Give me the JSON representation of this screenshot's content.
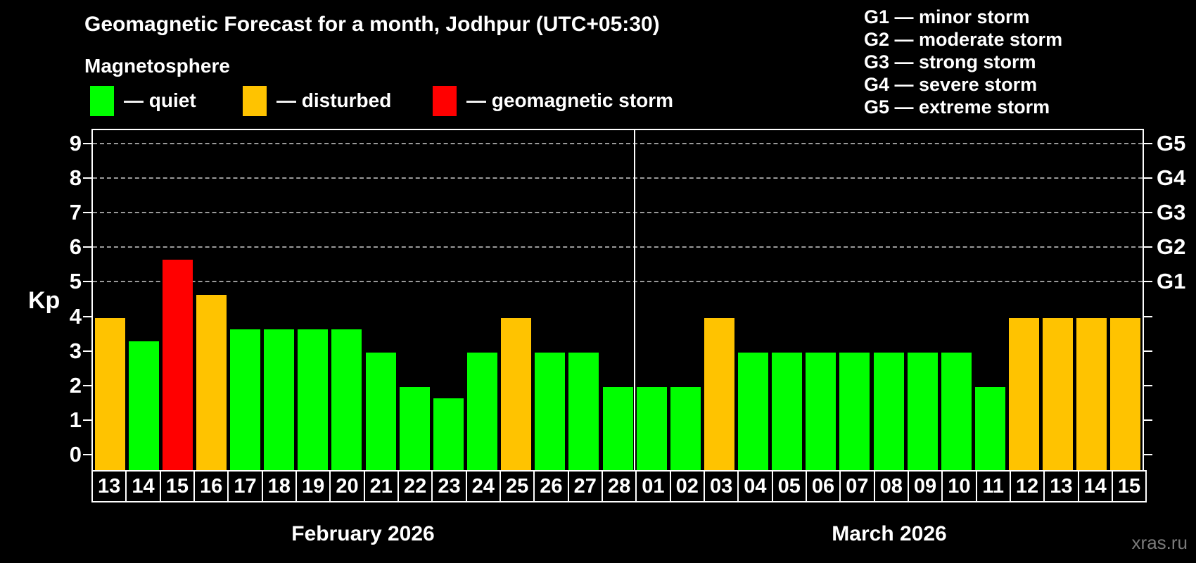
{
  "header": {
    "title": "Geomagnetic Forecast for a month, Jodhpur (UTC+05:30)",
    "subtitle": "Magnetosphere"
  },
  "legend": {
    "items": [
      {
        "name": "quiet",
        "label": "— quiet",
        "color": "#00ff00"
      },
      {
        "name": "disturbed",
        "label": "— disturbed",
        "color": "#ffc300"
      },
      {
        "name": "storm",
        "label": "— geomagnetic storm",
        "color": "#ff0000"
      }
    ]
  },
  "g_scale_legend": [
    "G1 — minor storm",
    "G2 — moderate storm",
    "G3 — strong storm",
    "G4 — severe storm",
    "G5 — extreme storm"
  ],
  "status_colors": {
    "quiet": "#00ff00",
    "disturbed": "#ffc300",
    "storm": "#ff0000"
  },
  "watermark": "xras.ru",
  "chart_data": {
    "type": "bar",
    "ylabel": "Kp",
    "ylim": [
      -0.4,
      9.38
    ],
    "y_ticks": [
      0,
      1,
      2,
      3,
      4,
      5,
      6,
      7,
      8,
      9
    ],
    "gridlines_at": [
      5,
      6,
      7,
      8,
      9
    ],
    "grid": "dashed horizontal at G-levels only",
    "legend_position": "top",
    "right_axis_labels": [
      {
        "value": 5,
        "label": "G1"
      },
      {
        "value": 6,
        "label": "G2"
      },
      {
        "value": 7,
        "label": "G3"
      },
      {
        "value": 8,
        "label": "G4"
      },
      {
        "value": 9,
        "label": "G5"
      }
    ],
    "months": [
      {
        "label": "February 2026",
        "days": [
          {
            "day": "13",
            "kp": 4.0,
            "status": "disturbed"
          },
          {
            "day": "14",
            "kp": 3.33,
            "status": "quiet"
          },
          {
            "day": "15",
            "kp": 5.67,
            "status": "storm"
          },
          {
            "day": "16",
            "kp": 4.67,
            "status": "disturbed"
          },
          {
            "day": "17",
            "kp": 3.67,
            "status": "quiet"
          },
          {
            "day": "18",
            "kp": 3.67,
            "status": "quiet"
          },
          {
            "day": "19",
            "kp": 3.67,
            "status": "quiet"
          },
          {
            "day": "20",
            "kp": 3.67,
            "status": "quiet"
          },
          {
            "day": "21",
            "kp": 3.0,
            "status": "quiet"
          },
          {
            "day": "22",
            "kp": 2.0,
            "status": "quiet"
          },
          {
            "day": "23",
            "kp": 1.67,
            "status": "quiet"
          },
          {
            "day": "24",
            "kp": 3.0,
            "status": "quiet"
          },
          {
            "day": "25",
            "kp": 4.0,
            "status": "disturbed"
          },
          {
            "day": "26",
            "kp": 3.0,
            "status": "quiet"
          },
          {
            "day": "27",
            "kp": 3.0,
            "status": "quiet"
          },
          {
            "day": "28",
            "kp": 2.0,
            "status": "quiet"
          }
        ]
      },
      {
        "label": "March 2026",
        "days": [
          {
            "day": "01",
            "kp": 2.0,
            "status": "quiet"
          },
          {
            "day": "02",
            "kp": 2.0,
            "status": "quiet"
          },
          {
            "day": "03",
            "kp": 4.0,
            "status": "disturbed"
          },
          {
            "day": "04",
            "kp": 3.0,
            "status": "quiet"
          },
          {
            "day": "05",
            "kp": 3.0,
            "status": "quiet"
          },
          {
            "day": "06",
            "kp": 3.0,
            "status": "quiet"
          },
          {
            "day": "07",
            "kp": 3.0,
            "status": "quiet"
          },
          {
            "day": "08",
            "kp": 3.0,
            "status": "quiet"
          },
          {
            "day": "09",
            "kp": 3.0,
            "status": "quiet"
          },
          {
            "day": "10",
            "kp": 3.0,
            "status": "quiet"
          },
          {
            "day": "11",
            "kp": 2.0,
            "status": "quiet"
          },
          {
            "day": "12",
            "kp": 4.0,
            "status": "disturbed"
          },
          {
            "day": "13",
            "kp": 4.0,
            "status": "disturbed"
          },
          {
            "day": "14",
            "kp": 4.0,
            "status": "disturbed"
          },
          {
            "day": "15",
            "kp": 4.0,
            "status": "disturbed"
          }
        ]
      }
    ]
  }
}
